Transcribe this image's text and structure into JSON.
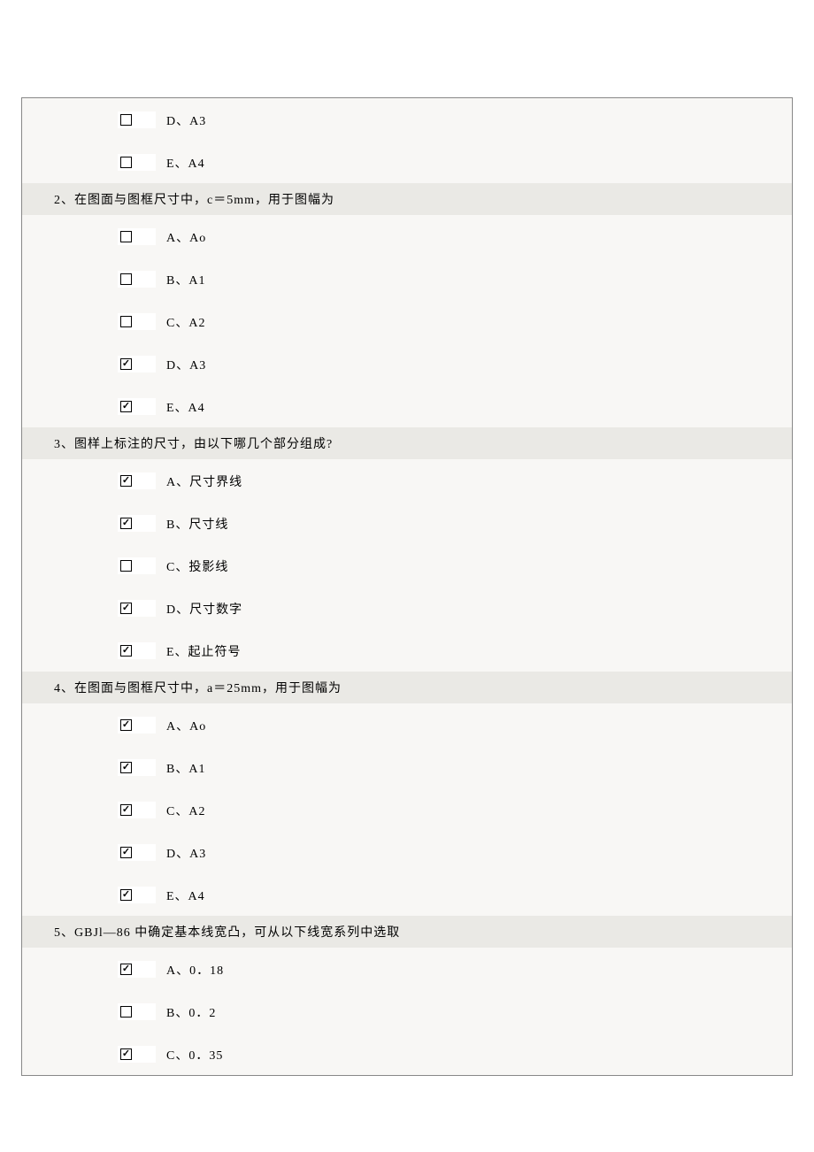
{
  "questions": [
    {
      "header": null,
      "options": [
        {
          "checked": false,
          "label": "D、A3"
        },
        {
          "checked": false,
          "label": "E、A4"
        }
      ]
    },
    {
      "header": "2、在图面与图框尺寸中，c＝5mm，用于图幅为",
      "options": [
        {
          "checked": false,
          "label": "A、Ao"
        },
        {
          "checked": false,
          "label": "B、A1"
        },
        {
          "checked": false,
          "label": "C、A2"
        },
        {
          "checked": true,
          "label": "D、A3"
        },
        {
          "checked": true,
          "label": "E、A4"
        }
      ]
    },
    {
      "header": "3、图样上标注的尺寸，由以下哪几个部分组成?",
      "options": [
        {
          "checked": true,
          "label": "A、尺寸界线"
        },
        {
          "checked": true,
          "label": "B、尺寸线"
        },
        {
          "checked": false,
          "label": "C、投影线"
        },
        {
          "checked": true,
          "label": "D、尺寸数字"
        },
        {
          "checked": true,
          "label": "E、起止符号"
        }
      ]
    },
    {
      "header": "4、在图面与图框尺寸中，a＝25mm，用于图幅为",
      "options": [
        {
          "checked": true,
          "label": "A、Ao"
        },
        {
          "checked": true,
          "label": "B、A1"
        },
        {
          "checked": true,
          "label": "C、A2"
        },
        {
          "checked": true,
          "label": "D、A3"
        },
        {
          "checked": true,
          "label": "E、A4"
        }
      ]
    },
    {
      "header": "5、GBJl—86 中确定基本线宽凸，可从以下线宽系列中选取",
      "options": [
        {
          "checked": true,
          "label": "A、0．18"
        },
        {
          "checked": false,
          "label": "B、0．2"
        },
        {
          "checked": true,
          "label": "C、0．35"
        }
      ]
    }
  ]
}
